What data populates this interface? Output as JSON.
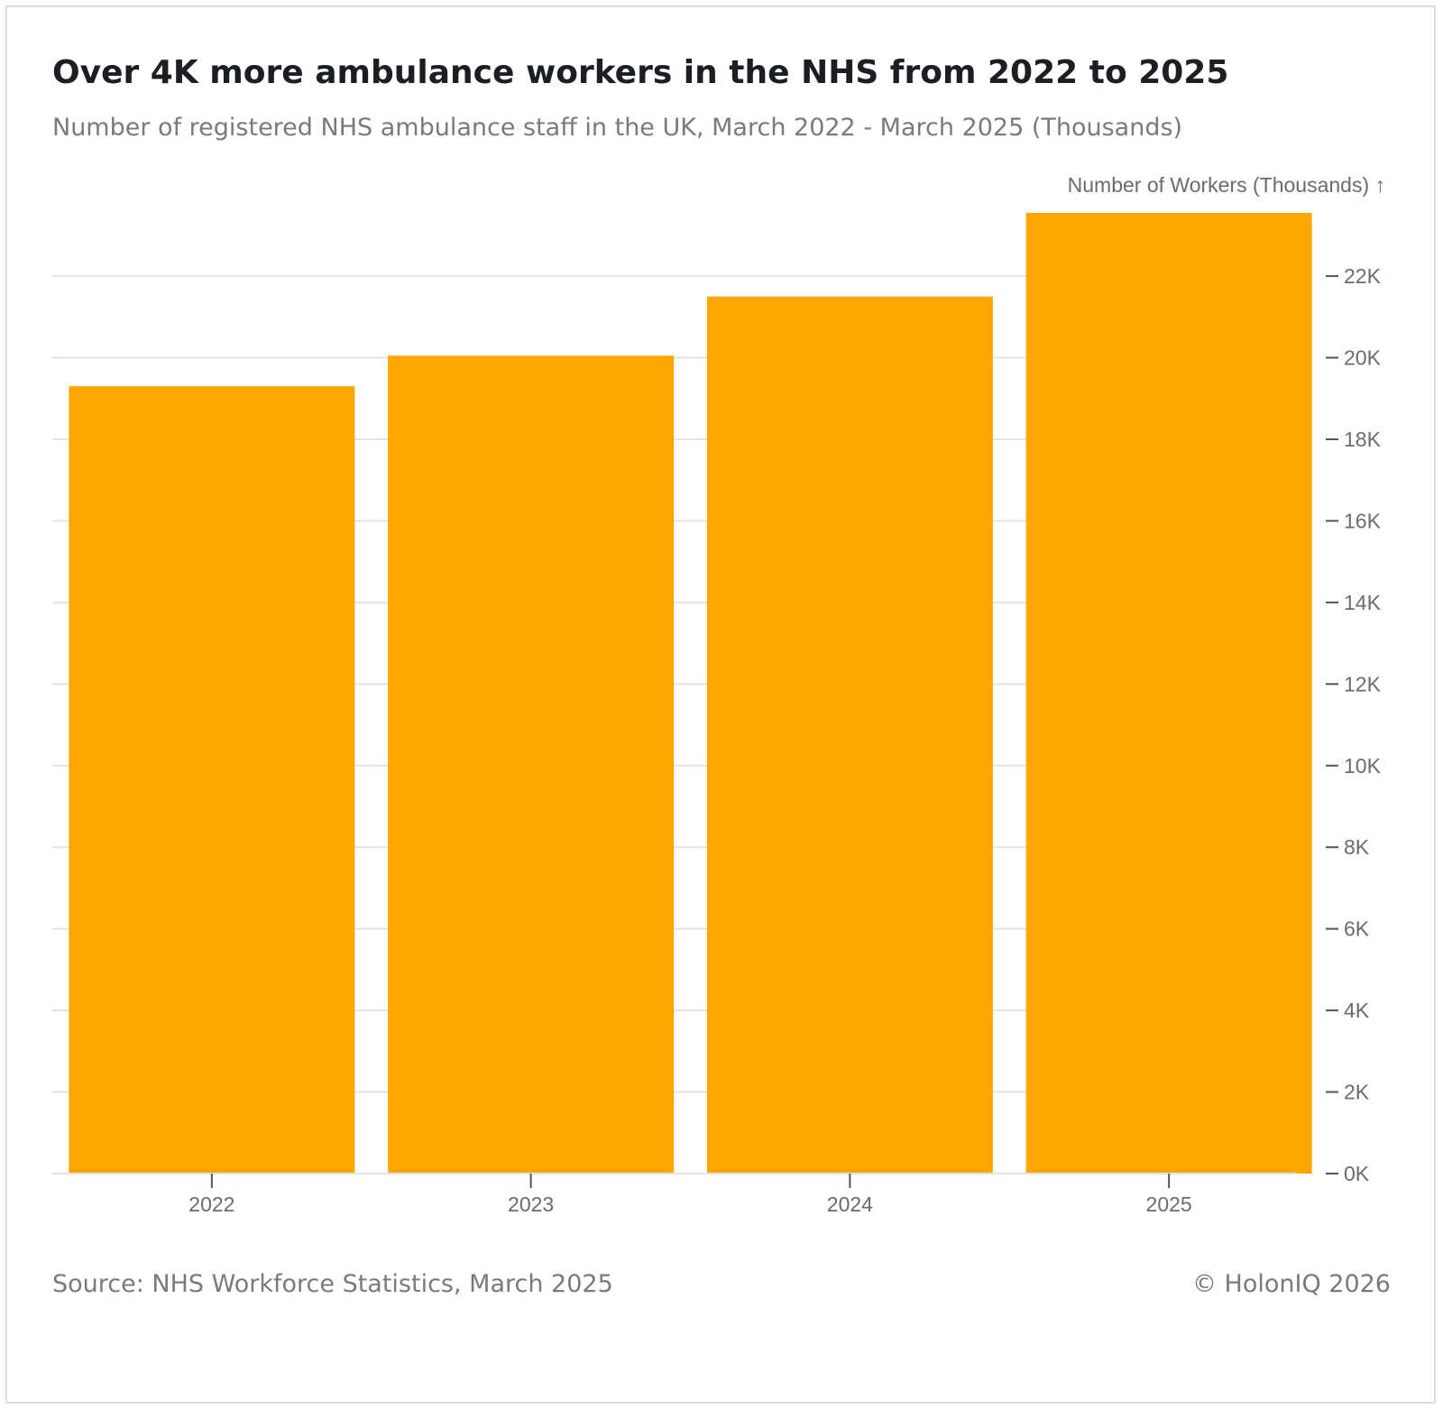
{
  "chart_data": {
    "type": "bar",
    "title": "Over 4K more ambulance workers in the NHS from 2022 to 2025",
    "subtitle": "Number of registered NHS ambulance staff in the UK, March 2022 - March 2025 (Thousands)",
    "ylabel": "Number of Workers (Thousands) ↑",
    "xlabel": "",
    "categories": [
      "2022",
      "2023",
      "2024",
      "2025"
    ],
    "values": [
      19300,
      20050,
      21500,
      23550
    ],
    "ylim": [
      0,
      23550
    ],
    "y_ticks": [
      0,
      2000,
      4000,
      6000,
      8000,
      10000,
      12000,
      14000,
      16000,
      18000,
      20000,
      22000
    ],
    "y_tick_labels": [
      "0K",
      "2K",
      "4K",
      "6K",
      "8K",
      "10K",
      "12K",
      "14K",
      "16K",
      "18K",
      "20K",
      "22K"
    ],
    "y_axis_position": "right",
    "grid": true,
    "bar_color": "#FFA600",
    "grid_color": "#e3e3e3"
  },
  "footer": {
    "source": "Source: NHS Workforce Statistics, March 2025",
    "copyright": "© HolonIQ 2026"
  }
}
